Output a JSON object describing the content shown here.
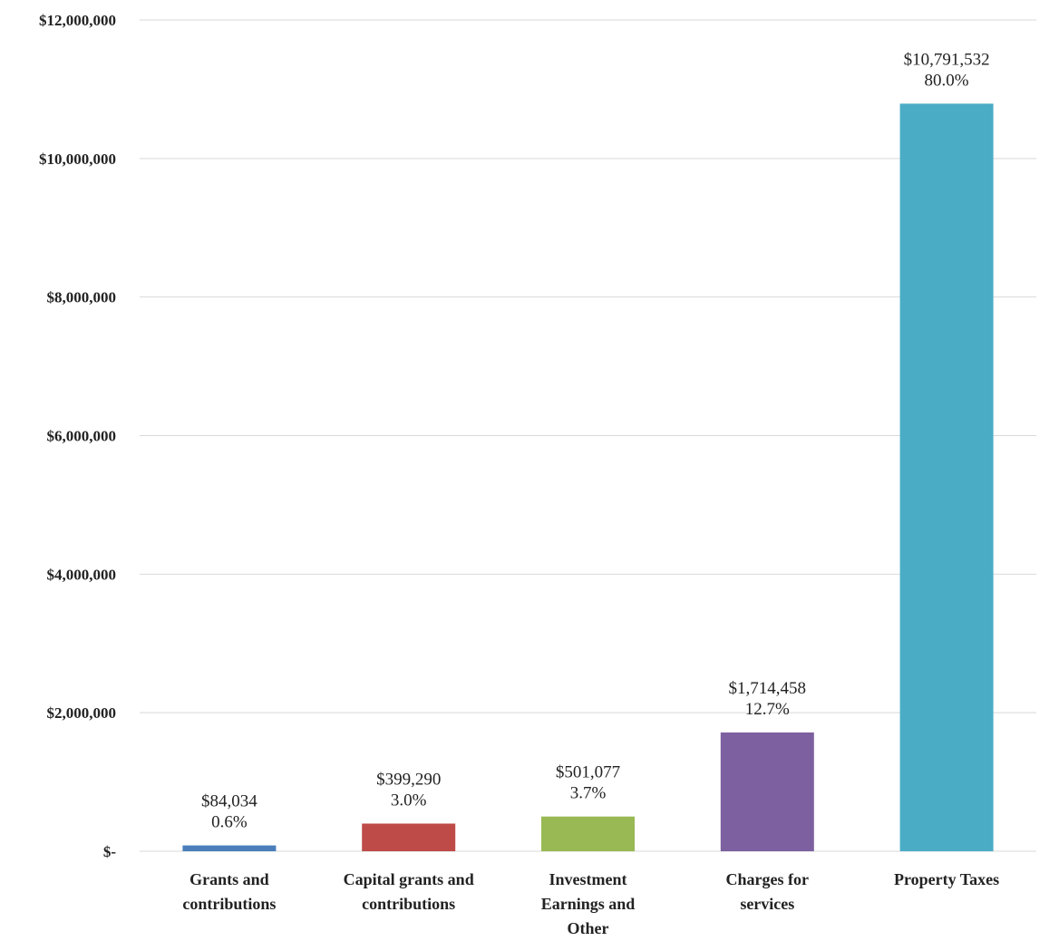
{
  "chart_data": {
    "type": "bar",
    "title": "",
    "xlabel": "",
    "ylabel": "",
    "ylim": [
      0,
      12000000
    ],
    "yticks": [
      {
        "value": 0,
        "label": "$-"
      },
      {
        "value": 2000000,
        "label": "$2,000,000"
      },
      {
        "value": 4000000,
        "label": "$4,000,000"
      },
      {
        "value": 6000000,
        "label": "$6,000,000"
      },
      {
        "value": 8000000,
        "label": "$8,000,000"
      },
      {
        "value": 10000000,
        "label": "$10,000,000"
      },
      {
        "value": 12000000,
        "label": "$12,000,000"
      }
    ],
    "grid": true,
    "legend": "none",
    "categories": [
      [
        "Grants and",
        "contributions"
      ],
      [
        "Capital grants and",
        "contributions"
      ],
      [
        "Investment",
        "Earnings and",
        "Other"
      ],
      [
        "Charges for",
        "services"
      ],
      [
        "Property Taxes"
      ]
    ],
    "values": [
      84034,
      399290,
      501077,
      1714458,
      10791532
    ],
    "value_labels": [
      "$84,034",
      "$399,290",
      "$501,077",
      "$1,714,458",
      "$10,791,532"
    ],
    "percent_labels": [
      "0.6%",
      "3.0%",
      "3.7%",
      "12.7%",
      "80.0%"
    ],
    "colors": [
      "#4a7ebb",
      "#be4b48",
      "#98b954",
      "#7d60a0",
      "#4bacc6"
    ]
  }
}
